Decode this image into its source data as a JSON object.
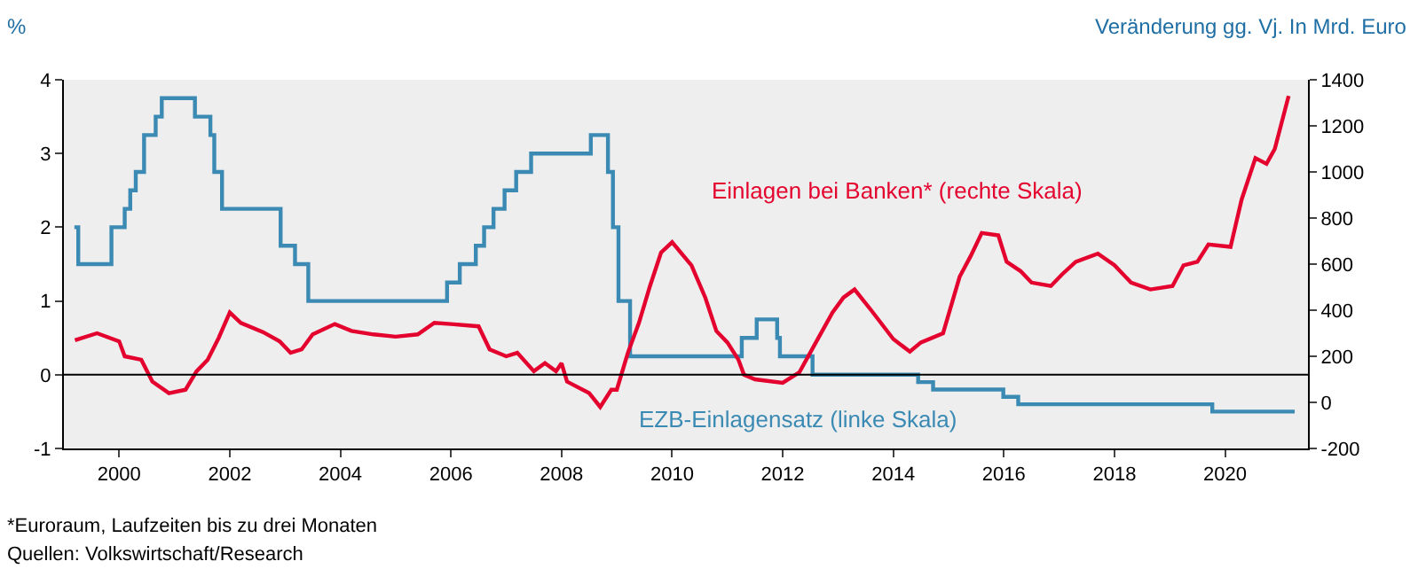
{
  "chart_data": {
    "type": "line",
    "ylabel": "%",
    "y2label": "Veränderung gg. Vj. In Mrd. Euro",
    "xlim": [
      1999.0,
      2021.5
    ],
    "xticks": [
      2000,
      2002,
      2004,
      2006,
      2008,
      2010,
      2012,
      2014,
      2016,
      2018,
      2020
    ],
    "ylim": [
      -1,
      4
    ],
    "yticks": [
      -1,
      0,
      1,
      2,
      3,
      4
    ],
    "y2lim": [
      -200,
      1400
    ],
    "y2ticks": [
      -200,
      0,
      200,
      400,
      600,
      800,
      1000,
      1200,
      1400
    ],
    "grid": false,
    "legend": false,
    "ref_lines": [
      {
        "axis": "y",
        "value": 0,
        "color": "#000000"
      }
    ],
    "series": [
      {
        "name": "EZB-Einlagensatz (linke Skala)",
        "type": "step",
        "color": "#3a8ab4",
        "axis": "y",
        "x": [
          1999.19,
          1999.26,
          1999.86,
          2000.1,
          2000.2,
          2000.3,
          2000.45,
          2000.66,
          2000.77,
          2001.37,
          2001.65,
          2001.72,
          2001.86,
          2002.92,
          2003.18,
          2003.42,
          2005.93,
          2006.16,
          2006.45,
          2006.6,
          2006.77,
          2006.97,
          2007.18,
          2007.45,
          2008.53,
          2008.84,
          2008.93,
          2009.03,
          2009.24,
          2011.26,
          2011.53,
          2011.9,
          2011.95,
          2012.54,
          2014.45,
          2014.72,
          2015.99,
          2016.26,
          2019.77,
          2021.26
        ],
        "values": [
          2.0,
          1.5,
          2.0,
          2.25,
          2.5,
          2.75,
          3.25,
          3.5,
          3.75,
          3.5,
          3.25,
          2.75,
          2.25,
          1.75,
          1.5,
          1.0,
          1.25,
          1.5,
          1.75,
          2.0,
          2.25,
          2.5,
          2.75,
          3.0,
          3.25,
          2.75,
          2.0,
          1.0,
          0.25,
          0.5,
          0.75,
          0.5,
          0.25,
          0.0,
          -0.1,
          -0.2,
          -0.3,
          -0.4,
          -0.5,
          -0.5
        ]
      },
      {
        "name": "Einlagen bei Banken* (rechte Skala)",
        "color": "#e4032e",
        "axis": "y2",
        "x": [
          1999.2,
          1999.6,
          2000.0,
          2000.1,
          2000.4,
          2000.6,
          2000.9,
          2001.2,
          2001.4,
          2001.6,
          2001.8,
          2002.0,
          2002.2,
          2002.6,
          2002.9,
          2003.1,
          2003.3,
          2003.5,
          2003.9,
          2004.2,
          2004.6,
          2005.0,
          2005.4,
          2005.7,
          2006.0,
          2006.5,
          2006.7,
          2007.0,
          2007.2,
          2007.5,
          2007.7,
          2007.9,
          2008.0,
          2008.1,
          2008.5,
          2008.7,
          2008.9,
          2009.0,
          2009.2,
          2009.4,
          2009.6,
          2009.8,
          2010.0,
          2010.35,
          2010.6,
          2010.8,
          2011.0,
          2011.2,
          2011.3,
          2011.5,
          2012.0,
          2012.3,
          2012.6,
          2012.9,
          2013.1,
          2013.3,
          2013.6,
          2014.0,
          2014.3,
          2014.5,
          2014.9,
          2015.2,
          2015.4,
          2015.6,
          2015.9,
          2016.05,
          2016.3,
          2016.5,
          2016.85,
          2017.05,
          2017.3,
          2017.7,
          2018.0,
          2018.3,
          2018.65,
          2019.05,
          2019.25,
          2019.5,
          2019.7,
          2020.1,
          2020.3,
          2020.55,
          2020.75,
          2020.9,
          2021.15
        ],
        "values": [
          270,
          300,
          265,
          200,
          185,
          90,
          40,
          55,
          135,
          185,
          280,
          390,
          345,
          305,
          265,
          215,
          230,
          295,
          340,
          310,
          295,
          285,
          295,
          345,
          340,
          330,
          230,
          200,
          215,
          135,
          170,
          135,
          170,
          90,
          40,
          -20,
          55,
          55,
          215,
          345,
          505,
          650,
          695,
          595,
          455,
          310,
          260,
          185,
          120,
          100,
          85,
          130,
          260,
          390,
          455,
          490,
          400,
          275,
          220,
          260,
          300,
          545,
          635,
          735,
          725,
          610,
          570,
          520,
          505,
          555,
          610,
          645,
          595,
          520,
          490,
          505,
          595,
          610,
          685,
          675,
          880,
          1060,
          1035,
          1100,
          1330
        ]
      }
    ],
    "annotations": [
      "*Euroraum, Laufzeiten bis zu drei Monaten",
      "Quellen: Volkswirtschaft/Research"
    ]
  }
}
